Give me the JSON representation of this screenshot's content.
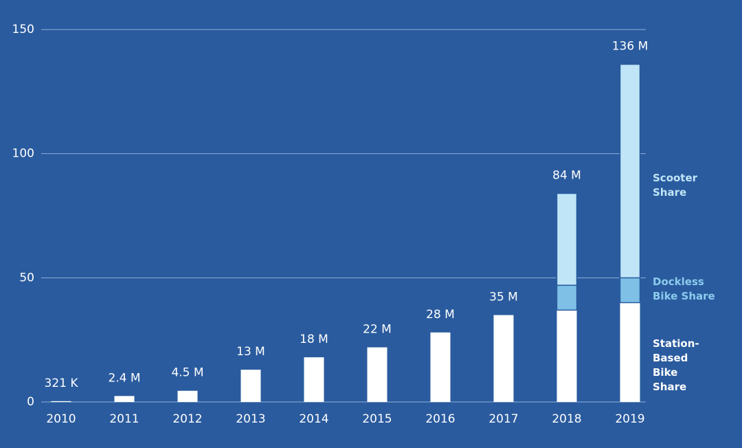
{
  "chart_data": {
    "type": "stacked-bar",
    "categories": [
      "2010",
      "2011",
      "2012",
      "2013",
      "2014",
      "2015",
      "2016",
      "2017",
      "2018",
      "2019"
    ],
    "series": [
      {
        "name": "Station-Based Bike Share",
        "color": "#ffffff",
        "values": [
          0.321,
          2.4,
          4.5,
          13,
          18,
          22,
          28,
          35,
          37,
          40
        ]
      },
      {
        "name": "Dockless Bike Share",
        "color": "#7fc1e6",
        "values": [
          null,
          null,
          null,
          null,
          null,
          null,
          null,
          null,
          10,
          10
        ]
      },
      {
        "name": "Scooter Share",
        "color": "#bfe5f7",
        "values": [
          null,
          null,
          null,
          null,
          null,
          null,
          null,
          null,
          37,
          86
        ]
      }
    ],
    "totals": {
      "values": [
        0.321,
        2.4,
        4.5,
        13,
        18,
        22,
        28,
        35,
        84,
        136
      ],
      "value_labels": [
        "321 K",
        "2.4 M",
        "4.5 M",
        "13 M",
        "18 M",
        "22 M",
        "28 M",
        "35 M",
        "84 M",
        "136 M"
      ]
    },
    "ylim": [
      0,
      150
    ],
    "yticks": [
      0,
      50,
      100,
      150
    ],
    "grid": true
  }
}
